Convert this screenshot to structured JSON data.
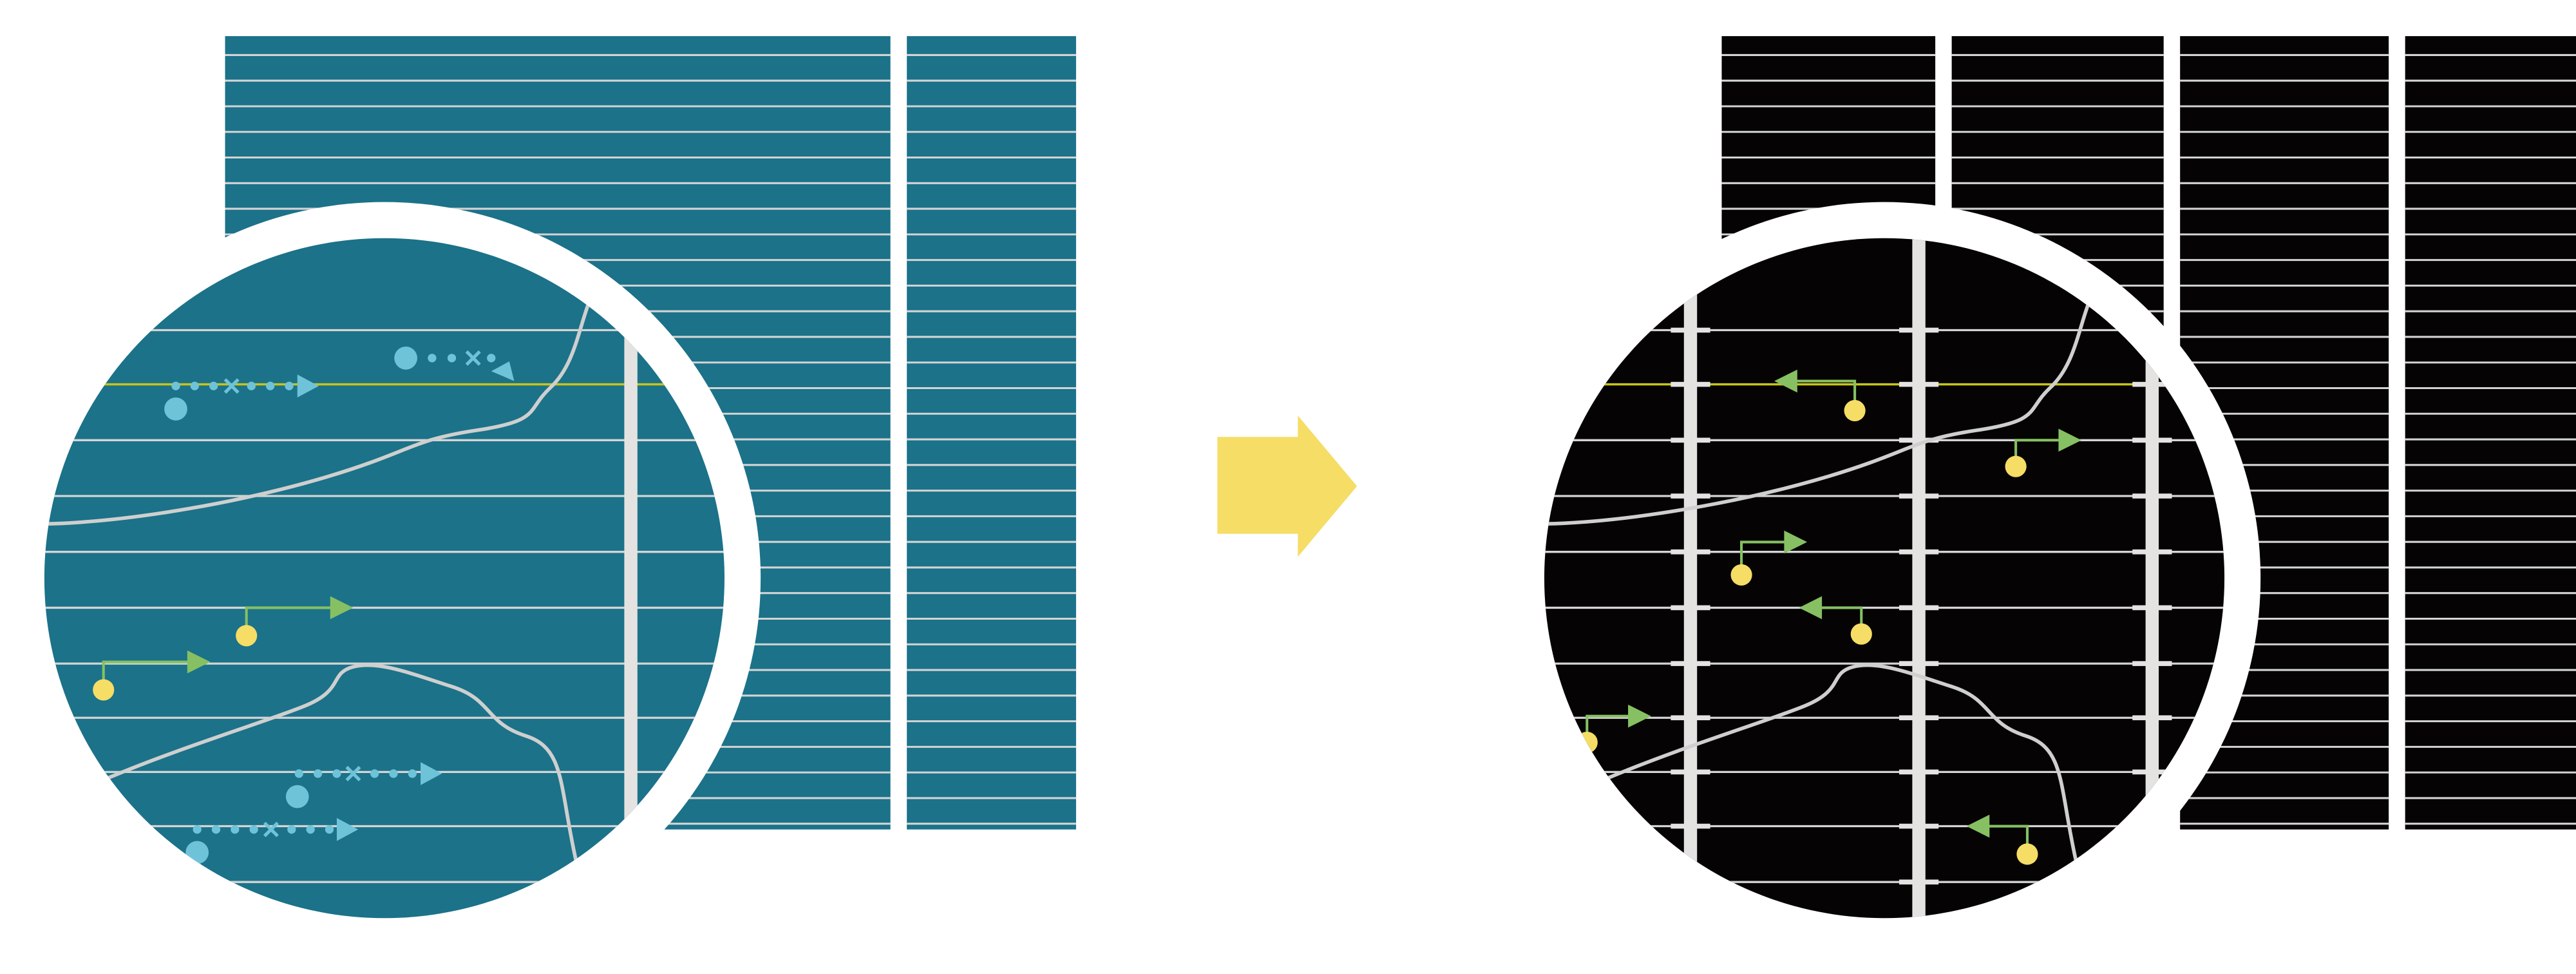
{
  "colors": {
    "before_panel": "#1b7289",
    "after_panel": "#050303",
    "grid_line": "#d4d4d4",
    "column_bar": "#e4e3e1",
    "highlight_line": "#c8c41a",
    "marker_blue": "#6fc3d9",
    "marker_yellow": "#f5dd66",
    "arrow_green": "#86c063",
    "transition_arrow": "#f5dd66",
    "lens_ring": "#ffffff"
  },
  "icons": {
    "transition": "right-arrow-icon",
    "magnifier": "magnifier-lens-icon"
  }
}
